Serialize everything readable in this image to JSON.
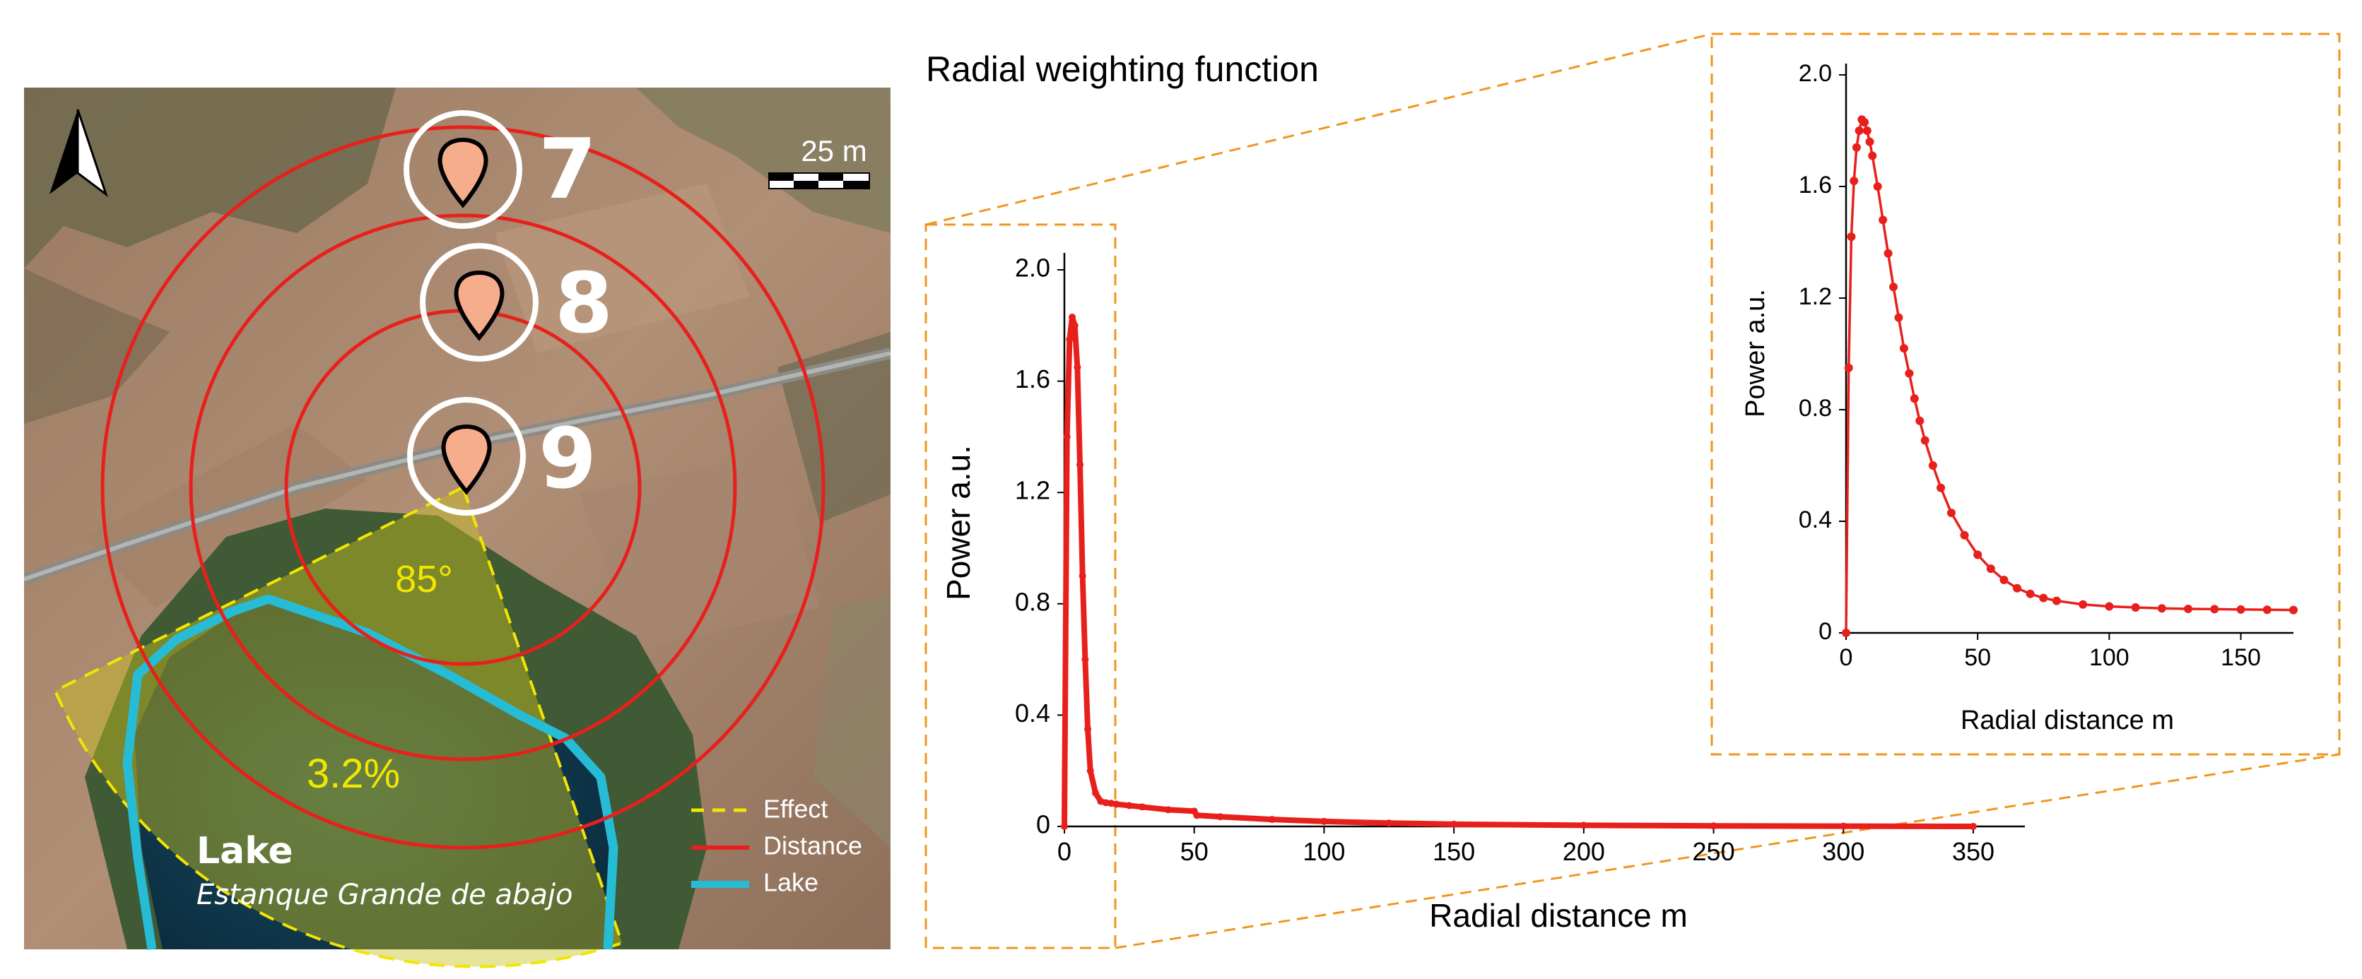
{
  "map": {
    "scale_label": "25 m",
    "sites": [
      {
        "label": "7"
      },
      {
        "label": "8"
      },
      {
        "label": "9"
      }
    ],
    "angle_label": "85°",
    "percent_label": "3.2%",
    "lake_title": "Lake",
    "lake_name": "Estanque Grande de abajo",
    "legend": [
      {
        "label": "Effect",
        "color": "#f2e600",
        "style": "dashed"
      },
      {
        "label": "Distance",
        "color": "#e8201c",
        "style": "solid"
      },
      {
        "label": "Lake",
        "color": "#27bcd6",
        "style": "solid"
      }
    ],
    "colors": {
      "rings": "#e8201c",
      "effect": "#f2e600",
      "lake": "#27bcd6",
      "marker": "#f5ad8c"
    }
  },
  "chart_title": "Radial weighting function",
  "chart_data": [
    {
      "type": "scatter",
      "name": "main",
      "xlabel": "Radial distance m",
      "ylabel": "Power  a.u.",
      "xlim": [
        0,
        350
      ],
      "ylim": [
        0,
        2.0
      ],
      "xticks": [
        0,
        50,
        100,
        150,
        200,
        250,
        300,
        350
      ],
      "yticks": [
        0,
        0.4,
        0.8,
        1.2,
        1.6,
        2.0
      ],
      "ytick_labels": [
        "0",
        "0.4",
        "0.8",
        "1.2",
        "1.6",
        "2.0"
      ],
      "color": "#e8201c",
      "x": [
        0,
        1,
        2,
        3,
        4,
        5,
        6,
        7,
        8,
        9,
        10,
        12,
        14,
        16,
        18,
        20,
        25,
        30,
        40,
        50,
        51,
        60,
        80,
        100,
        125,
        150,
        200,
        250,
        300,
        350
      ],
      "y": [
        0,
        1.4,
        1.75,
        1.83,
        1.8,
        1.65,
        1.3,
        0.9,
        0.6,
        0.35,
        0.2,
        0.12,
        0.09,
        0.085,
        0.083,
        0.08,
        0.075,
        0.07,
        0.06,
        0.055,
        0.04,
        0.035,
        0.025,
        0.018,
        0.012,
        0.008,
        0.004,
        0.002,
        0.001,
        0.0
      ]
    },
    {
      "type": "line",
      "name": "inset",
      "xlabel": "Radial distance m",
      "ylabel": "Power  a.u.",
      "xlim": [
        0,
        170
      ],
      "ylim": [
        0,
        2.0
      ],
      "xticks": [
        0,
        50,
        100,
        150
      ],
      "yticks": [
        0,
        0.4,
        0.8,
        1.2,
        1.6,
        2.0
      ],
      "ytick_labels": [
        "0",
        "0.4",
        "0.8",
        "1.2",
        "1.6",
        "2.0"
      ],
      "color": "#e8201c",
      "x": [
        0,
        1,
        2,
        3,
        4,
        5,
        6,
        7,
        8,
        9,
        10,
        12,
        14,
        16,
        18,
        20,
        22,
        24,
        26,
        28,
        30,
        33,
        36,
        40,
        45,
        50,
        55,
        60,
        65,
        70,
        75,
        80,
        90,
        100,
        110,
        120,
        130,
        140,
        150,
        160,
        170
      ],
      "y": [
        0,
        0.95,
        1.42,
        1.62,
        1.74,
        1.8,
        1.84,
        1.83,
        1.8,
        1.76,
        1.71,
        1.6,
        1.48,
        1.36,
        1.24,
        1.13,
        1.02,
        0.93,
        0.84,
        0.76,
        0.69,
        0.6,
        0.52,
        0.43,
        0.35,
        0.28,
        0.23,
        0.19,
        0.16,
        0.14,
        0.125,
        0.115,
        0.102,
        0.095,
        0.091,
        0.088,
        0.086,
        0.085,
        0.084,
        0.083,
        0.082
      ]
    }
  ]
}
